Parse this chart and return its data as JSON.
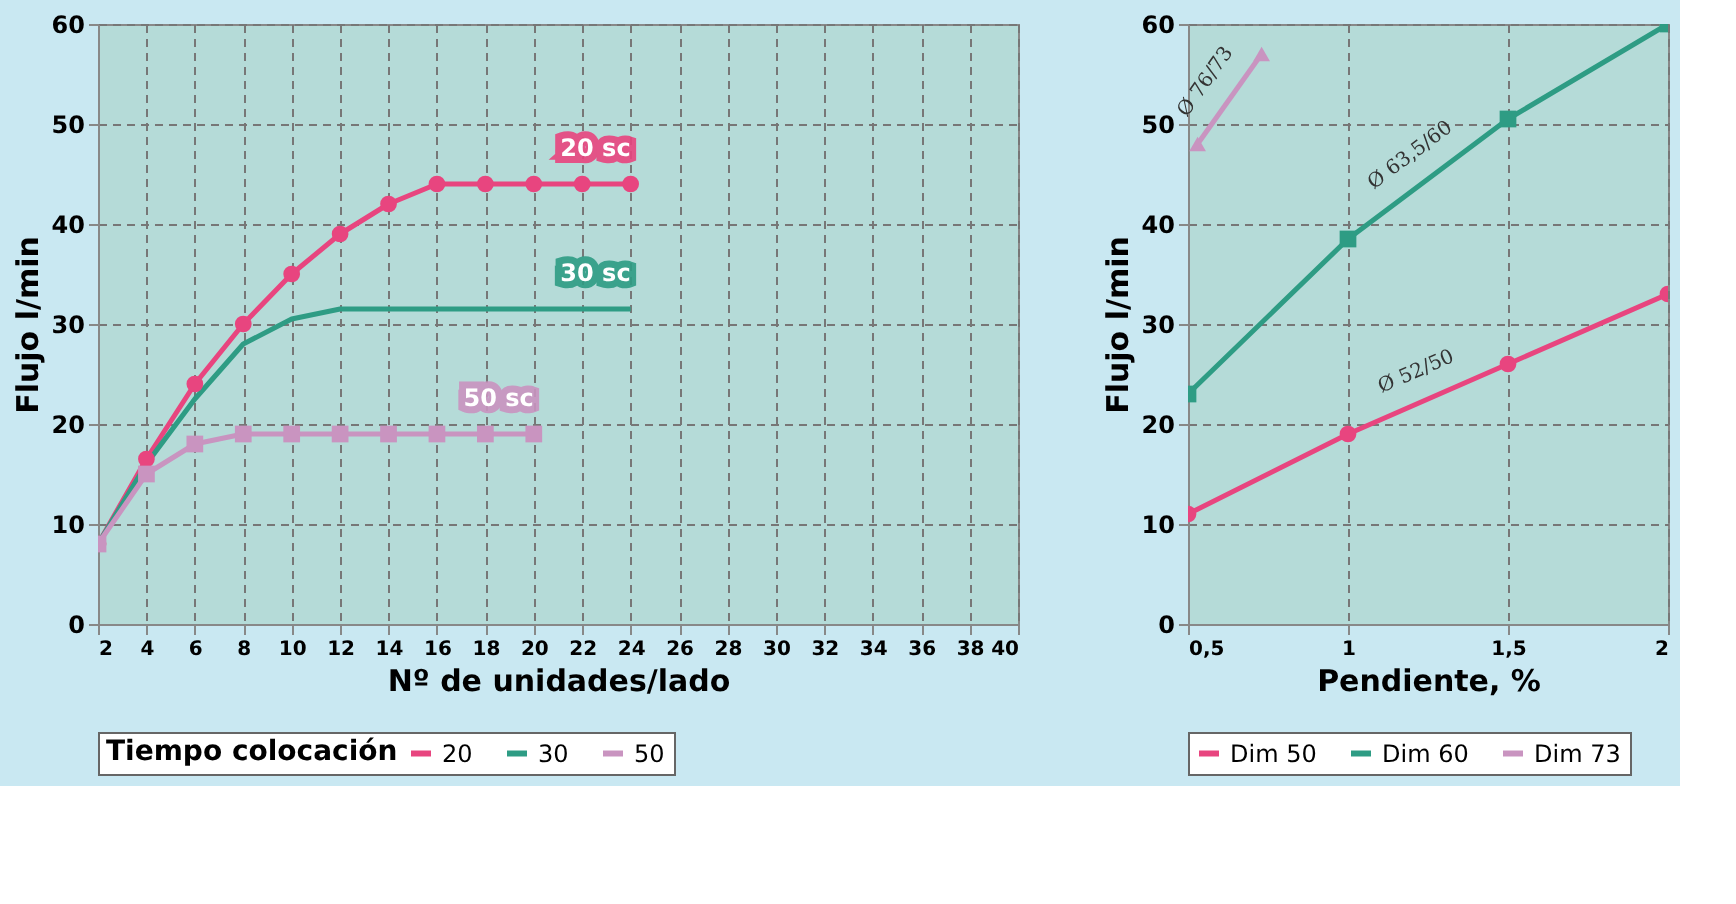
{
  "chart_data": [
    {
      "type": "line",
      "xlabel": "Nº de unidades/lado",
      "ylabel": "Flujo l/min",
      "legend_title": "Tiempo colocación",
      "legend": "bottom",
      "grid": true,
      "xlim": [
        2,
        40
      ],
      "xticks": [
        2,
        4,
        6,
        8,
        10,
        12,
        14,
        16,
        18,
        20,
        22,
        24,
        26,
        28,
        30,
        32,
        34,
        36,
        38,
        40
      ],
      "ylim": [
        0,
        60
      ],
      "yticks": [
        0,
        10,
        20,
        30,
        40,
        50,
        60
      ],
      "series": [
        {
          "name": "20",
          "color": "#e8457f",
          "marker": "circle",
          "x": [
            2,
            4,
            6,
            8,
            10,
            12,
            14,
            16,
            18,
            20,
            22,
            24
          ],
          "values": [
            8,
            16.5,
            24,
            30,
            35,
            39,
            42,
            44,
            44,
            44,
            44,
            44
          ]
        },
        {
          "name": "30",
          "color": "#2e9c84",
          "marker": "none",
          "x": [
            2,
            4,
            6,
            8,
            10,
            12,
            24
          ],
          "values": [
            8,
            16,
            22.5,
            28,
            30.5,
            31.5,
            31.5
          ]
        },
        {
          "name": "50",
          "color": "#c994c0",
          "marker": "square",
          "x": [
            2,
            4,
            6,
            8,
            10,
            12,
            14,
            16,
            18,
            20
          ],
          "values": [
            8,
            15,
            18,
            19,
            19,
            19,
            19,
            19,
            19,
            19
          ]
        }
      ],
      "annotations": [
        "20 sc",
        "30 sc",
        "50 sc"
      ]
    },
    {
      "type": "line",
      "xlabel": "Pendiente, %",
      "ylabel": "Flujo l/min",
      "legend": "bottom",
      "grid": true,
      "xlim": [
        0.5,
        2
      ],
      "xticks": [
        {
          "value": 0.5,
          "label": "0,5"
        },
        1,
        {
          "value": 1.5,
          "label": "1,5"
        },
        2
      ],
      "ylim": [
        0,
        60
      ],
      "yticks": [
        0,
        10,
        20,
        30,
        40,
        50,
        60
      ],
      "series": [
        {
          "name": "Dim 50",
          "color": "#e8457f",
          "marker": "circle",
          "x": [
            0.5,
            1,
            1.5,
            2
          ],
          "values": [
            11,
            19,
            26,
            33
          ]
        },
        {
          "name": "Dim 60",
          "color": "#2e9c84",
          "marker": "square",
          "x": [
            0.5,
            1,
            1.5,
            2
          ],
          "values": [
            23,
            38.5,
            50.5,
            60
          ]
        },
        {
          "name": "Dim 73",
          "color": "#c994c0",
          "marker": "triangle",
          "x": [
            0.53,
            0.73
          ],
          "values": [
            48,
            57
          ]
        }
      ],
      "annotations": [
        "Ø 52/50",
        "Ø 63,5/60",
        "Ø 76/73"
      ]
    }
  ]
}
